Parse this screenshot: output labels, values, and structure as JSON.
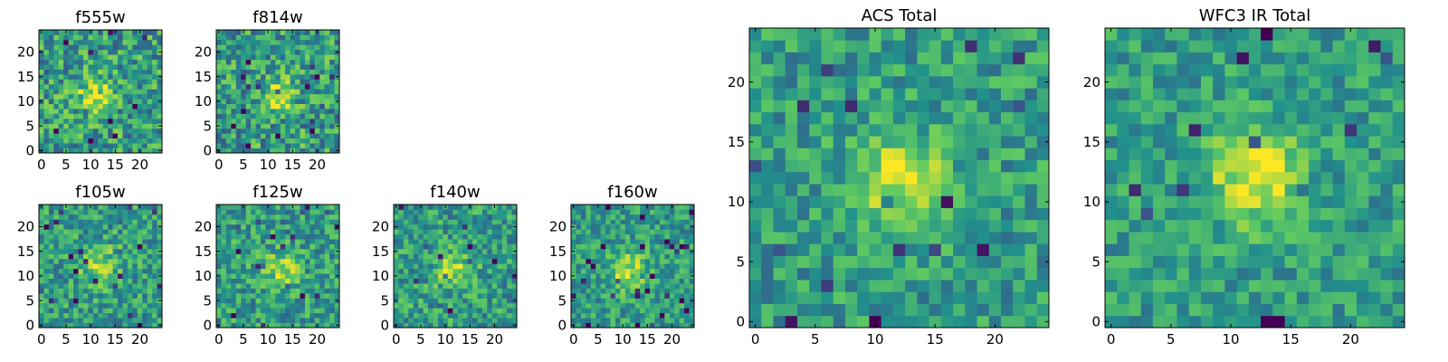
{
  "chart_data": {
    "type": "heatmap",
    "colormap": "viridis",
    "colormap_stops": [
      "#440154",
      "#3b528b",
      "#21918c",
      "#5ec962",
      "#fde725"
    ],
    "frame_color": "#000000",
    "panels": [
      {
        "id": "f555w",
        "title": "f555w",
        "grid_size": 25,
        "x_ticks": [
          0,
          5,
          10,
          15,
          20
        ],
        "y_ticks": [
          0,
          5,
          10,
          15,
          20
        ],
        "source_center": [
          11,
          11
        ],
        "source_strength": 0.35,
        "noise": 0.55,
        "seed": 11
      },
      {
        "id": "f814w",
        "title": "f814w",
        "grid_size": 25,
        "x_ticks": [
          0,
          5,
          10,
          15,
          20
        ],
        "y_ticks": [
          0,
          5,
          10,
          15,
          20
        ],
        "source_center": [
          12,
          11
        ],
        "source_strength": 0.3,
        "noise": 0.55,
        "seed": 23
      },
      {
        "id": "f105w",
        "title": "f105w",
        "grid_size": 25,
        "x_ticks": [
          0,
          5,
          10,
          15,
          20
        ],
        "y_ticks": [
          0,
          5,
          10,
          15,
          20
        ],
        "source_center": [
          12,
          12
        ],
        "source_strength": 0.3,
        "noise": 0.45,
        "seed": 37
      },
      {
        "id": "f125w",
        "title": "f125w",
        "grid_size": 25,
        "x_ticks": [
          0,
          5,
          10,
          15,
          20
        ],
        "y_ticks": [
          0,
          5,
          10,
          15,
          20
        ],
        "source_center": [
          13,
          11
        ],
        "source_strength": 0.3,
        "noise": 0.45,
        "seed": 41
      },
      {
        "id": "f140w",
        "title": "f140w",
        "grid_size": 25,
        "x_ticks": [
          0,
          5,
          10,
          15,
          20
        ],
        "y_ticks": [
          0,
          5,
          10,
          15,
          20
        ],
        "source_center": [
          12,
          11
        ],
        "source_strength": 0.3,
        "noise": 0.45,
        "seed": 53
      },
      {
        "id": "f160w",
        "title": "f160w",
        "grid_size": 25,
        "x_ticks": [
          0,
          5,
          10,
          15,
          20
        ],
        "y_ticks": [
          0,
          5,
          10,
          15,
          20
        ],
        "source_center": [
          11,
          11
        ],
        "source_strength": 0.35,
        "noise": 0.4,
        "seed": 67
      },
      {
        "id": "acs-total",
        "title": "ACS Total",
        "grid_size": 25,
        "x_ticks": [
          0,
          5,
          10,
          15,
          20
        ],
        "y_ticks": [
          0,
          5,
          10,
          15,
          20
        ],
        "source_center": [
          12,
          12
        ],
        "source_strength": 0.4,
        "noise": 0.4,
        "seed": 79
      },
      {
        "id": "wfc3-ir-total",
        "title": "WFC3 IR Total",
        "grid_size": 25,
        "x_ticks": [
          0,
          5,
          10,
          15,
          20
        ],
        "y_ticks": [
          0,
          5,
          10,
          15,
          20
        ],
        "source_center": [
          12,
          12
        ],
        "source_strength": 0.45,
        "noise": 0.35,
        "seed": 97
      }
    ]
  }
}
